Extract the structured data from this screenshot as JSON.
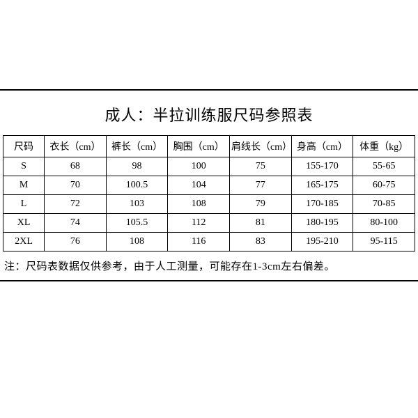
{
  "title": "成人：半拉训练服尺码参照表",
  "columns": [
    "尺码",
    "衣长（cm）",
    "裤长（cm）",
    "胸围（cm）",
    "肩线长（cm）",
    "身高（cm）",
    "体重（kg）"
  ],
  "rows": [
    [
      "S",
      "68",
      "98",
      "100",
      "75",
      "155-170",
      "55-65"
    ],
    [
      "M",
      "70",
      "100.5",
      "104",
      "77",
      "165-175",
      "60-75"
    ],
    [
      "L",
      "72",
      "103",
      "108",
      "79",
      "170-185",
      "70-85"
    ],
    [
      "XL",
      "74",
      "105.5",
      "112",
      "81",
      "180-195",
      "80-100"
    ],
    [
      "2XL",
      "76",
      "108",
      "116",
      "83",
      "195-210",
      "95-115"
    ]
  ],
  "note": "注：尺码表数据仅供参考，由于人工测量，可能存在1-3cm左右偏差。",
  "styling": {
    "background_color": "#ffffff",
    "border_color": "#000000",
    "text_color": "#000000",
    "title_fontsize": 22,
    "cell_fontsize": 14,
    "note_fontsize": 15,
    "font_family": "SimSun"
  }
}
